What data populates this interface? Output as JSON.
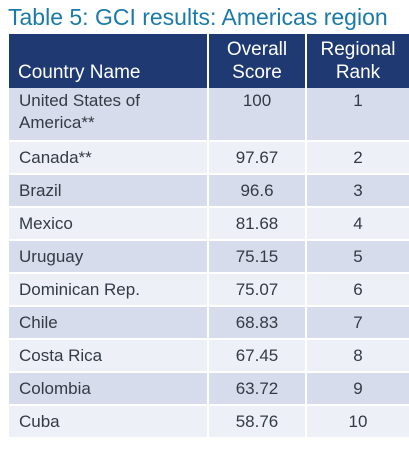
{
  "title": "Table 5: GCI results: Americas region",
  "table": {
    "headers": {
      "country": "Country Name",
      "score_line1": "Overall",
      "score_line2": "Score",
      "rank_line1": "Regional",
      "rank_line2": "Rank"
    },
    "rows": [
      {
        "country_line1": "United States of",
        "country_line2": "America**",
        "score": "100",
        "rank": "1"
      },
      {
        "country": "Canada**",
        "score": "97.67",
        "rank": "2"
      },
      {
        "country": "Brazil",
        "score": "96.6",
        "rank": "3"
      },
      {
        "country": "Mexico",
        "score": "81.68",
        "rank": "4"
      },
      {
        "country": "Uruguay",
        "score": "75.15",
        "rank": "5"
      },
      {
        "country": "Dominican Rep.",
        "score": "75.07",
        "rank": "6"
      },
      {
        "country": "Chile",
        "score": "68.83",
        "rank": "7"
      },
      {
        "country": "Costa Rica",
        "score": "67.45",
        "rank": "8"
      },
      {
        "country": "Colombia",
        "score": "63.72",
        "rank": "9"
      },
      {
        "country": "Cuba",
        "score": "58.76",
        "rank": "10"
      }
    ]
  },
  "colors": {
    "title": "#1a7aa8",
    "header_bg": "#1f3a73",
    "row_shade": "#d6dceb",
    "row_plain": "#edf0f6"
  }
}
